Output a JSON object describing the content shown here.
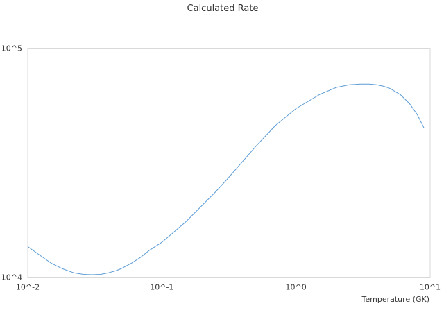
{
  "chart_data": {
    "type": "line",
    "title": "Calculated Rate",
    "xlabel": "Temperature (GK)",
    "ylabel": "",
    "x_scale": "log",
    "y_scale": "log",
    "xlim": [
      0.01,
      10
    ],
    "ylim": [
      10000,
      100000
    ],
    "x_tick_labels": [
      "10^-2",
      "10^-1",
      "10^0",
      "10^1"
    ],
    "y_tick_labels": [
      "10^4",
      "10^5"
    ],
    "grid": false,
    "legend": "none",
    "colors": {
      "line": "#5b9bd5",
      "frame": "#d9d9d9"
    },
    "series": [
      {
        "x": [
          0.01,
          0.012,
          0.015,
          0.018,
          0.022,
          0.026,
          0.03,
          0.035,
          0.04,
          0.045,
          0.05,
          0.06,
          0.07,
          0.08,
          0.1,
          0.12,
          0.15,
          0.2,
          0.25,
          0.3,
          0.4,
          0.5,
          0.7,
          1.0,
          1.5,
          2.0,
          2.5,
          3.0,
          3.5,
          4.0,
          4.5,
          5.0,
          6.0,
          7.0,
          8.0,
          9.0
        ],
        "y": [
          13600,
          12600,
          11500,
          10900,
          10450,
          10280,
          10250,
          10280,
          10450,
          10650,
          10900,
          11550,
          12250,
          13050,
          14200,
          15550,
          17400,
          20600,
          23500,
          26400,
          32000,
          37200,
          45900,
          54500,
          62800,
          67400,
          69200,
          69700,
          69700,
          69200,
          68200,
          66800,
          62700,
          57400,
          51400,
          44800
        ]
      }
    ]
  }
}
